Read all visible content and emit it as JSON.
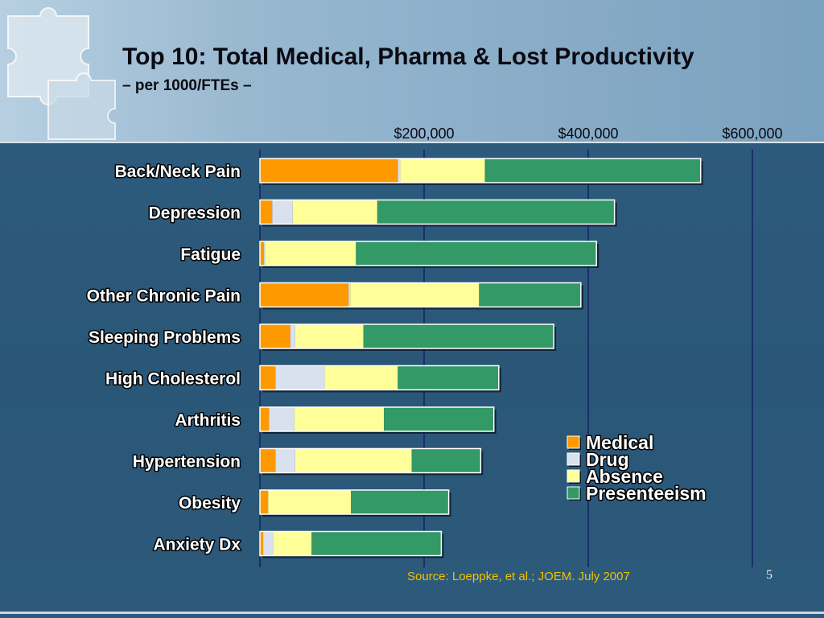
{
  "title": "Top 10: Total Medical, Pharma & Lost Productivity",
  "subtitle": "– per 1000/FTEs –",
  "source": "Source: Loeppke, et al.; JOEM. July 2007",
  "page_number": "5",
  "colors": {
    "medical": "#ff9900",
    "drug": "#d9e0ee",
    "absence": "#ffff99",
    "presenteeism": "#339966",
    "gridline": "#1a2f6a",
    "header_band": "#98b8d0"
  },
  "icons": [
    "puzzle-pieces-icon"
  ],
  "chart_data": {
    "type": "bar",
    "orientation": "horizontal",
    "stacked": true,
    "title": "Top 10: Total Medical, Pharma & Lost Productivity",
    "subtitle": "– per 1000/FTEs –",
    "xlim": [
      0,
      600000
    ],
    "x_ticks": [
      200000,
      400000,
      600000
    ],
    "x_tick_labels": [
      "$200,000",
      "$400,000",
      "$600,000"
    ],
    "x_axis_position": "top",
    "grid": true,
    "legend_placement": "bottom-right",
    "categories": [
      "Back/Neck Pain",
      "Depression",
      "Fatigue",
      "Other Chronic Pain",
      "Sleeping Problems",
      "High Cholesterol",
      "Arthritis",
      "Hypertension",
      "Obesity",
      "Anxiety Dx"
    ],
    "series": [
      {
        "name": "Medical",
        "values": [
          168000,
          15000,
          5000,
          108000,
          37000,
          19000,
          11000,
          19000,
          10000,
          4000
        ]
      },
      {
        "name": "Drug",
        "values": [
          3000,
          25000,
          1000,
          2000,
          6000,
          60000,
          31000,
          24000,
          0,
          12000
        ]
      },
      {
        "name": "Absence",
        "values": [
          103000,
          103000,
          111000,
          157000,
          83000,
          89000,
          109000,
          142000,
          101000,
          47000
        ]
      },
      {
        "name": "Presenteeism",
        "values": [
          263000,
          289000,
          293000,
          124000,
          232000,
          123000,
          134000,
          84000,
          119000,
          158000
        ]
      }
    ]
  }
}
